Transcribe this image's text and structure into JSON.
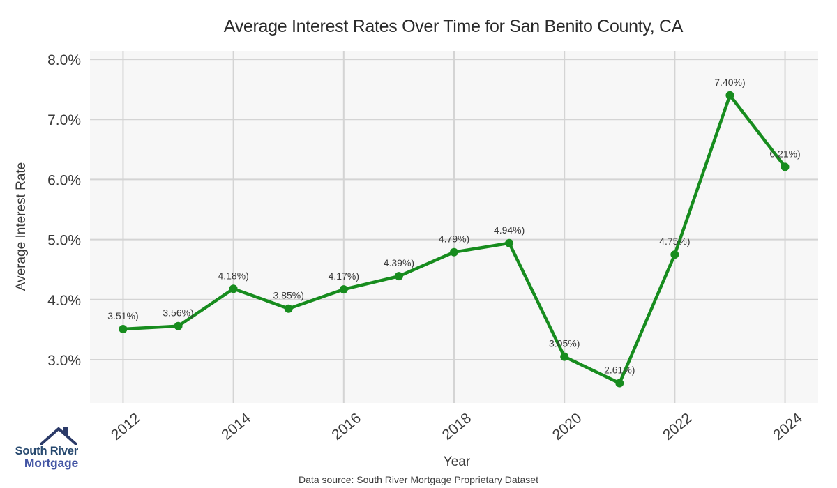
{
  "header": {
    "title": "Average Interest Rates Over Time for San Benito County, CA"
  },
  "chart_data": {
    "type": "line",
    "title": "Average Interest Rates Over Time for San Benito County, CA",
    "xlabel": "Year",
    "ylabel": "Average Interest Rate",
    "x": [
      2012,
      2013,
      2014,
      2015,
      2016,
      2017,
      2018,
      2019,
      2020,
      2021,
      2022,
      2023,
      2024
    ],
    "values": [
      3.51,
      3.56,
      4.18,
      3.85,
      4.17,
      4.39,
      4.79,
      4.94,
      3.05,
      2.61,
      4.75,
      7.4,
      6.21
    ],
    "point_labels": [
      "3.51%)",
      "3.56%)",
      "4.18%)",
      "3.85%)",
      "4.17%)",
      "4.39%)",
      "4.79%)",
      "4.94%)",
      "3.05%)",
      "2.61%)",
      "4.75%)",
      "7.40%)",
      "6.21%)"
    ],
    "x_ticks": [
      2012,
      2014,
      2016,
      2018,
      2020,
      2022,
      2024
    ],
    "x_tick_labels": [
      "2012",
      "2014",
      "2016",
      "2018",
      "2020",
      "2022",
      "2024"
    ],
    "y_ticks": [
      3,
      4,
      5,
      6,
      7,
      8
    ],
    "y_tick_labels": [
      "3.0%",
      "4.0%",
      "5.0%",
      "6.0%",
      "7.0%",
      "8.0%"
    ],
    "xlim": [
      2011.4,
      2024.6
    ],
    "ylim": [
      2.28,
      8.14
    ],
    "grid": true,
    "legend": "none",
    "line_color": "#178c1e",
    "marker_color": "#178c1e",
    "plot_bg": "#f7f7f7",
    "grid_color": "#d4d4d4"
  },
  "logo": {
    "line1": "South River",
    "line2": "Mortgage",
    "icon": "house-roof-icon",
    "roof_color": "#2b3a68",
    "line1_color": "#27496f",
    "line2_color": "#4355a4"
  },
  "footer": {
    "source": "Data source: South River Mortgage Proprietary Dataset"
  }
}
